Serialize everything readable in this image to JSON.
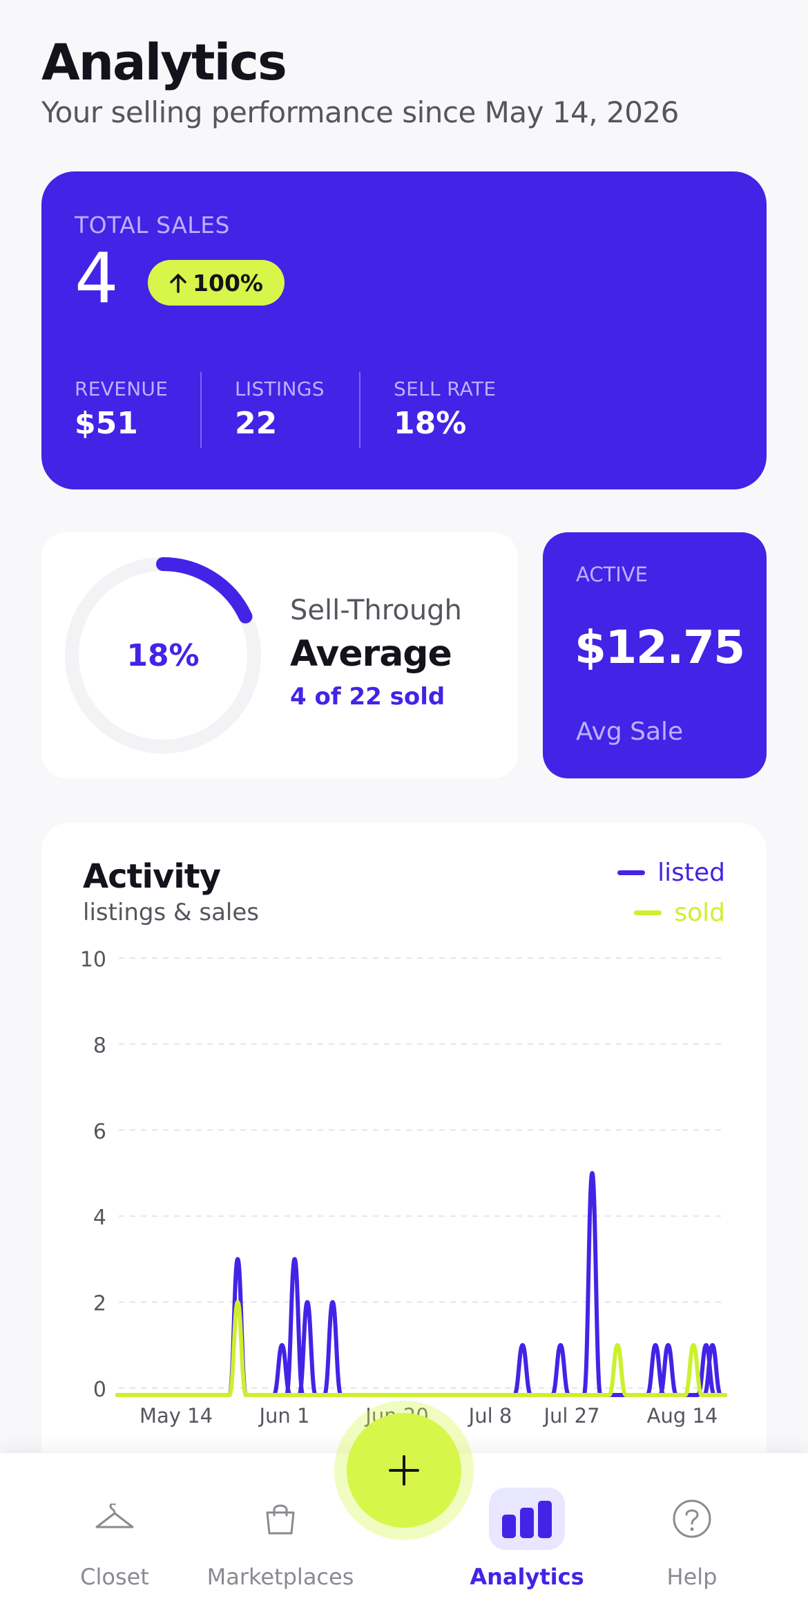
{
  "header": {
    "title": "Analytics",
    "subtitle": "Your selling performance since May 14, 2026"
  },
  "hero": {
    "label": "TOTAL SALES",
    "value": "4",
    "change": "100%",
    "change_icon": "arrow-up-icon",
    "stats": [
      {
        "label": "REVENUE",
        "value": "$51"
      },
      {
        "label": "LISTINGS",
        "value": "22"
      },
      {
        "label": "SELL RATE",
        "value": "18%"
      }
    ]
  },
  "sell_through": {
    "percent_label": "18%",
    "progress": 0.18,
    "label": "Sell-Through",
    "rating": "Average",
    "detail": "4 of 22 sold"
  },
  "active": {
    "label": "ACTIVE",
    "value": "$12.75",
    "sub": "Avg Sale"
  },
  "activity": {
    "title": "Activity",
    "subtitle": "listings & sales",
    "legend": [
      {
        "name": "listed",
        "color": "#4323e6"
      },
      {
        "name": "sold",
        "color": "#cdf02e"
      }
    ]
  },
  "chart_data": {
    "type": "line",
    "y_ticks": [
      "10",
      "8",
      "6",
      "4",
      "2",
      "0"
    ],
    "x_ticks": [
      "May 14",
      "Jun 1",
      "Jun 20",
      "Jul 8",
      "Jul 27",
      "Aug 14"
    ],
    "ylim": [
      0,
      10
    ],
    "grid": true,
    "legend_position": "top-right",
    "series": [
      {
        "name": "listed",
        "color": "#4323e6",
        "points": [
          [
            "Jun 2",
            3
          ],
          [
            "Jun 9",
            1
          ],
          [
            "Jun 11",
            3
          ],
          [
            "Jun 13",
            2
          ],
          [
            "Jun 17",
            2
          ],
          [
            "Jul 17",
            1
          ],
          [
            "Jul 23",
            1
          ],
          [
            "Jul 28",
            5
          ],
          [
            "Aug 7",
            1
          ],
          [
            "Aug 9",
            1
          ],
          [
            "Aug 15",
            1
          ],
          [
            "Aug 16",
            1
          ]
        ]
      },
      {
        "name": "sold",
        "color": "#cdf02e",
        "points": [
          [
            "Jun 2",
            2
          ],
          [
            "Aug 1",
            1
          ],
          [
            "Aug 13",
            1
          ]
        ]
      }
    ]
  },
  "fab": {
    "icon": "plus-icon"
  },
  "nav": [
    {
      "label": "Closet",
      "icon": "hanger-icon",
      "active": false
    },
    {
      "label": "Marketplaces",
      "icon": "shopping-bag-icon",
      "active": false
    },
    {
      "label": "Analytics",
      "icon": "bar-chart-icon",
      "active": true
    },
    {
      "label": "Help",
      "icon": "help-icon",
      "active": false
    }
  ]
}
